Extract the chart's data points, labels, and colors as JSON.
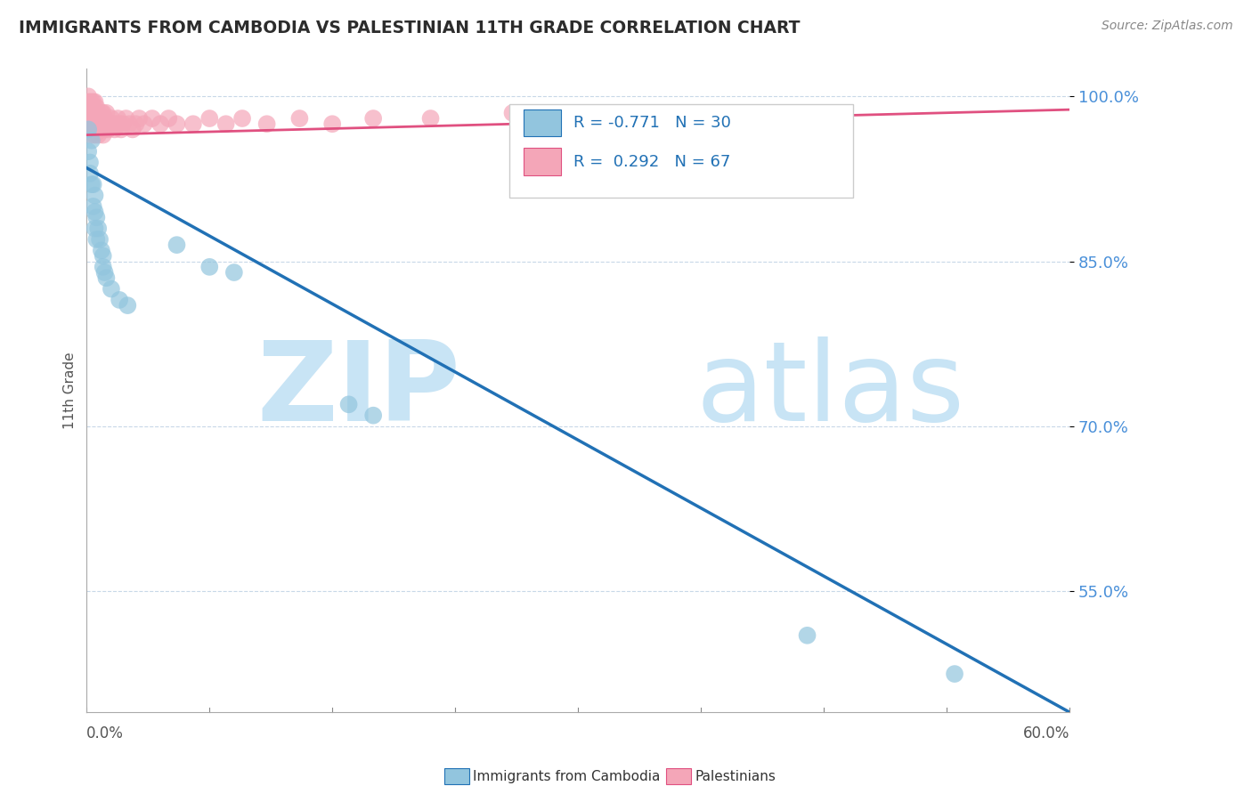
{
  "title": "IMMIGRANTS FROM CAMBODIA VS PALESTINIAN 11TH GRADE CORRELATION CHART",
  "source": "Source: ZipAtlas.com",
  "ylabel": "11th Grade",
  "xlim": [
    0.0,
    0.6
  ],
  "ylim": [
    0.44,
    1.025
  ],
  "y_ticks": [
    0.55,
    0.7,
    0.85,
    1.0
  ],
  "y_tick_labels": [
    "55.0%",
    "70.0%",
    "85.0%",
    "100.0%"
  ],
  "legend_r1": "R = -0.771",
  "legend_n1": "N = 30",
  "legend_r2": "R =  0.292",
  "legend_n2": "N = 67",
  "color_blue": "#92c5de",
  "color_pink": "#f4a6b8",
  "watermark_zip": "ZIP",
  "watermark_atlas": "atlas",
  "watermark_color": "#c8e4f5",
  "cambodia_x": [
    0.001,
    0.001,
    0.002,
    0.002,
    0.003,
    0.003,
    0.004,
    0.004,
    0.005,
    0.005,
    0.005,
    0.006,
    0.006,
    0.007,
    0.008,
    0.009,
    0.01,
    0.01,
    0.011,
    0.012,
    0.015,
    0.02,
    0.025,
    0.055,
    0.075,
    0.09,
    0.16,
    0.175,
    0.44,
    0.53
  ],
  "cambodia_y": [
    0.97,
    0.95,
    0.94,
    0.93,
    0.96,
    0.92,
    0.92,
    0.9,
    0.91,
    0.895,
    0.88,
    0.89,
    0.87,
    0.88,
    0.87,
    0.86,
    0.855,
    0.845,
    0.84,
    0.835,
    0.825,
    0.815,
    0.81,
    0.865,
    0.845,
    0.84,
    0.72,
    0.71,
    0.51,
    0.475
  ],
  "palestinian_x": [
    0.0005,
    0.001,
    0.001,
    0.001,
    0.002,
    0.002,
    0.002,
    0.003,
    0.003,
    0.003,
    0.003,
    0.003,
    0.004,
    0.004,
    0.004,
    0.005,
    0.005,
    0.005,
    0.005,
    0.006,
    0.006,
    0.006,
    0.007,
    0.007,
    0.007,
    0.008,
    0.008,
    0.009,
    0.009,
    0.01,
    0.01,
    0.01,
    0.011,
    0.011,
    0.012,
    0.012,
    0.013,
    0.014,
    0.015,
    0.016,
    0.017,
    0.018,
    0.019,
    0.02,
    0.021,
    0.022,
    0.024,
    0.026,
    0.028,
    0.03,
    0.032,
    0.035,
    0.04,
    0.045,
    0.05,
    0.055,
    0.065,
    0.075,
    0.085,
    0.095,
    0.11,
    0.13,
    0.15,
    0.175,
    0.21,
    0.26,
    0.32
  ],
  "palestinian_y": [
    0.99,
    1.0,
    0.995,
    0.985,
    0.995,
    0.985,
    0.975,
    0.995,
    0.99,
    0.98,
    0.975,
    0.965,
    0.995,
    0.985,
    0.975,
    0.995,
    0.985,
    0.975,
    0.965,
    0.99,
    0.98,
    0.97,
    0.985,
    0.975,
    0.965,
    0.98,
    0.97,
    0.985,
    0.975,
    0.985,
    0.975,
    0.965,
    0.98,
    0.97,
    0.985,
    0.975,
    0.97,
    0.975,
    0.98,
    0.975,
    0.97,
    0.975,
    0.98,
    0.975,
    0.97,
    0.975,
    0.98,
    0.975,
    0.97,
    0.975,
    0.98,
    0.975,
    0.98,
    0.975,
    0.98,
    0.975,
    0.975,
    0.98,
    0.975,
    0.98,
    0.975,
    0.98,
    0.975,
    0.98,
    0.98,
    0.985,
    0.985
  ],
  "blue_trend_x": [
    0.0,
    0.604
  ],
  "blue_trend_y": [
    0.935,
    0.437
  ],
  "pink_trend_x": [
    0.0,
    0.6
  ],
  "pink_trend_y": [
    0.965,
    0.988
  ]
}
